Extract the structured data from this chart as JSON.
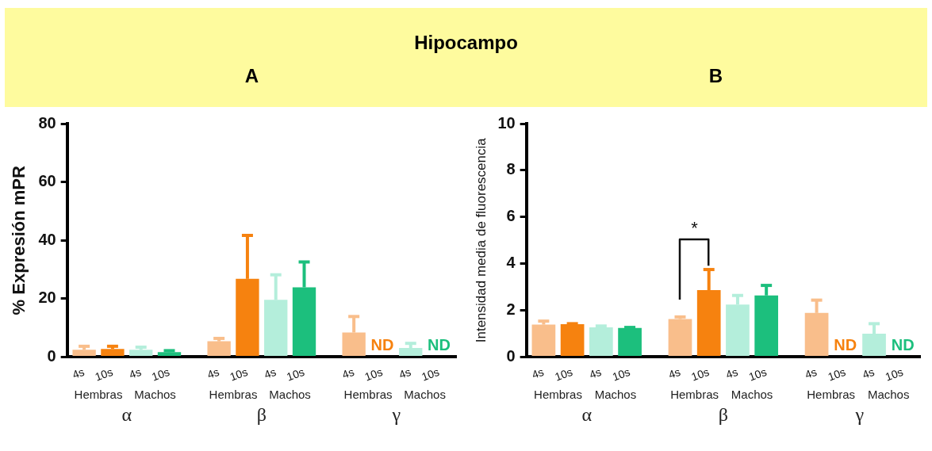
{
  "chart_data": [
    {
      "type": "bar",
      "title": "Hipocampo",
      "subtitle": "A",
      "ylabel": "% Expresión mPR",
      "categories": [
        "4s",
        "10s",
        "4s",
        "10s",
        "4s",
        "10s",
        "4s",
        "10s",
        "4s",
        "10s",
        "4s",
        "10s"
      ],
      "values": [
        2.5,
        2.8,
        2.5,
        1.7,
        5.4,
        26.8,
        19.6,
        23.9,
        8.4,
        null,
        3.1,
        null
      ],
      "errors": [
        1.2,
        0.9,
        0.9,
        0.5,
        1.0,
        14.9,
        8.6,
        8.7,
        5.5,
        null,
        1.6,
        null
      ],
      "colors": [
        "#f9be8b",
        "#f6820f",
        "#b4eedb",
        "#1cbf7d",
        "#f9be8b",
        "#f6820f",
        "#b4eedb",
        "#1cbf7d",
        "#f9be8b",
        "#f6820f",
        "#b4eedb",
        "#1cbf7d"
      ],
      "value_labels": [
        null,
        null,
        null,
        null,
        null,
        null,
        null,
        null,
        null,
        "ND",
        null,
        "ND"
      ],
      "ylim": [
        0,
        80
      ],
      "yticks": [
        0,
        20,
        40,
        60,
        80
      ],
      "annotations": [
        "Hembras",
        "Machos",
        "α",
        "Hembras",
        "Machos",
        "β",
        "Hembras",
        "Machos",
        "γ"
      ]
    },
    {
      "type": "bar",
      "subtitle": "B",
      "ylabel": "Intensidad media de fluorescencia",
      "categories": [
        "4s",
        "10s",
        "4s",
        "10s",
        "4s",
        "10s",
        "4s",
        "10s",
        "4s",
        "10s",
        "4s",
        "10s"
      ],
      "values": [
        1.39,
        1.41,
        1.27,
        1.25,
        1.63,
        2.87,
        2.25,
        2.64,
        1.89,
        null,
        1.0,
        null
      ],
      "errors": [
        0.15,
        0.02,
        0.06,
        0.02,
        0.09,
        0.88,
        0.39,
        0.43,
        0.55,
        null,
        0.43,
        null
      ],
      "colors": [
        "#f9be8b",
        "#f6820f",
        "#b4eedb",
        "#1cbf7d",
        "#f9be8b",
        "#f6820f",
        "#b4eedb",
        "#1cbf7d",
        "#f9be8b",
        "#f6820f",
        "#b4eedb",
        "#1cbf7d"
      ],
      "value_labels": [
        null,
        null,
        null,
        null,
        null,
        null,
        null,
        null,
        null,
        "ND",
        null,
        "ND"
      ],
      "ylim": [
        0,
        10
      ],
      "yticks": [
        0,
        2,
        4,
        6,
        8,
        10
      ],
      "annotations": [
        "Hembras",
        "Machos",
        "α",
        "Hembras",
        "Machos",
        "β",
        "Hembras",
        "Machos",
        "γ",
        "*"
      ]
    }
  ]
}
